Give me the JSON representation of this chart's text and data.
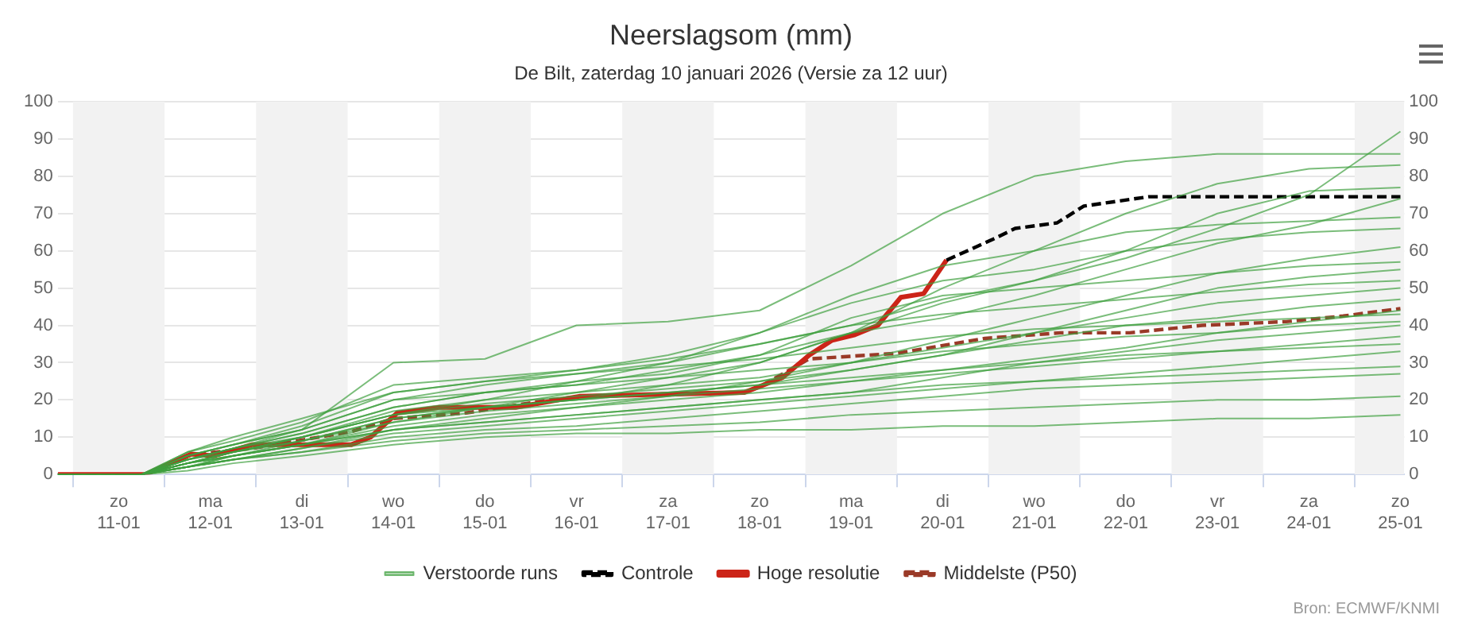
{
  "chart_data": {
    "type": "line",
    "title": "Neerslagsom (mm)",
    "subtitle": "De Bilt, zaterdag 10 januari 2026 (Versie za 12 uur)",
    "annotations": [
      "Bron: ECMWF/KNMI"
    ],
    "x": [
      "2026-01-10T20:00",
      "2026-01-11T18:00",
      "2026-01-12T06:00",
      "2026-01-12T18:00",
      "2026-01-13T12:00",
      "2026-01-14T12:00",
      "2026-01-15T12:00",
      "2026-01-16T12:00",
      "2026-01-17T12:00",
      "2026-01-18T12:00",
      "2026-01-19T12:00",
      "2026-01-20T12:00",
      "2026-01-21T12:00",
      "2026-01-22T12:00",
      "2026-01-23T12:00",
      "2026-01-24T12:00",
      "2026-01-25T12:00"
    ],
    "xlim": [
      "2026-01-10T20:00",
      "2026-01-25T13:00"
    ],
    "xticks": [
      {
        "value": "2026-01-11",
        "label": null
      },
      {
        "value": "2026-01-11T12:00",
        "label": "zo 11-01"
      },
      {
        "value": "2026-01-12",
        "label": null
      },
      {
        "value": "2026-01-12T12:00",
        "label": "ma 12-01"
      },
      {
        "value": "2026-01-13",
        "label": null
      },
      {
        "value": "2026-01-13T12:00",
        "label": "di 13-01"
      },
      {
        "value": "2026-01-14",
        "label": null
      },
      {
        "value": "2026-01-14T12:00",
        "label": "wo 14-01"
      },
      {
        "value": "2026-01-15",
        "label": null
      },
      {
        "value": "2026-01-15T12:00",
        "label": "do 15-01"
      },
      {
        "value": "2026-01-16",
        "label": null
      },
      {
        "value": "2026-01-16T12:00",
        "label": "vr 16-01"
      },
      {
        "value": "2026-01-17",
        "label": null
      },
      {
        "value": "2026-01-17T12:00",
        "label": "za 17-01"
      },
      {
        "value": "2026-01-18",
        "label": null
      },
      {
        "value": "2026-01-18T12:00",
        "label": "zo 18-01"
      },
      {
        "value": "2026-01-19",
        "label": null
      },
      {
        "value": "2026-01-19T12:00",
        "label": "ma 19-01"
      },
      {
        "value": "2026-01-20",
        "label": null
      },
      {
        "value": "2026-01-20T12:00",
        "label": "di 20-01"
      },
      {
        "value": "2026-01-21",
        "label": null
      },
      {
        "value": "2026-01-21T12:00",
        "label": "wo 21-01"
      },
      {
        "value": "2026-01-22",
        "label": null
      },
      {
        "value": "2026-01-22T12:00",
        "label": "do 22-01"
      },
      {
        "value": "2026-01-23",
        "label": null
      },
      {
        "value": "2026-01-23T12:00",
        "label": "vr 23-01"
      },
      {
        "value": "2026-01-24",
        "label": null
      },
      {
        "value": "2026-01-24T12:00",
        "label": "za 24-01"
      },
      {
        "value": "2026-01-25",
        "label": null
      },
      {
        "value": "2026-01-25T12:00",
        "label": "zo 25-01"
      }
    ],
    "ylim": [
      0,
      100
    ],
    "yticks": [
      0,
      10,
      20,
      30,
      40,
      50,
      60,
      70,
      80,
      90,
      100
    ],
    "y2lim": [
      0,
      100
    ],
    "y2ticks": [
      0,
      10,
      20,
      30,
      40,
      50,
      60,
      70,
      80,
      90,
      100
    ],
    "grid": "y",
    "legend": "bottom",
    "bands": [
      {
        "axis": "x",
        "from": "2026-01-11",
        "to": "2026-01-12",
        "color": "#f2f2f2"
      },
      {
        "axis": "x",
        "from": "2026-01-13",
        "to": "2026-01-14",
        "color": "#f2f2f2"
      },
      {
        "axis": "x",
        "from": "2026-01-15",
        "to": "2026-01-16",
        "color": "#f2f2f2"
      },
      {
        "axis": "x",
        "from": "2026-01-17",
        "to": "2026-01-18",
        "color": "#f2f2f2"
      },
      {
        "axis": "x",
        "from": "2026-01-19",
        "to": "2026-01-20",
        "color": "#f2f2f2"
      },
      {
        "axis": "x",
        "from": "2026-01-21",
        "to": "2026-01-22",
        "color": "#f2f2f2"
      },
      {
        "axis": "x",
        "from": "2026-01-23",
        "to": "2026-01-24",
        "color": "#f2f2f2"
      },
      {
        "axis": "x",
        "from": "2026-01-25",
        "to": "2026-01-25T13:00",
        "color": "#f2f2f2"
      }
    ],
    "series": [
      {
        "name": "Verstoorde runs",
        "color": "#3f9f3f",
        "values": [
          0,
          0,
          2,
          5,
          9,
          15,
          18,
          20,
          24,
          30,
          38,
          46,
          52,
          58,
          66,
          75,
          92
        ]
      },
      {
        "color": "#3f9f3f",
        "values": [
          0,
          0,
          4,
          7,
          12,
          30,
          31,
          40,
          41,
          44,
          56,
          70,
          80,
          84,
          86,
          86,
          86
        ]
      },
      {
        "color": "#3f9f3f",
        "values": [
          0,
          0,
          3,
          6,
          10,
          16,
          20,
          25,
          30,
          38,
          48,
          56,
          60,
          70,
          78,
          82,
          83
        ]
      },
      {
        "color": "#3f9f3f",
        "values": [
          0,
          0,
          5,
          8,
          12,
          20,
          24,
          27,
          30,
          35,
          40,
          47,
          52,
          60,
          70,
          76,
          77
        ]
      },
      {
        "color": "#3f9f3f",
        "values": [
          0,
          0,
          4,
          7,
          11,
          18,
          22,
          24,
          28,
          32,
          38,
          42,
          48,
          55,
          62,
          67,
          74
        ]
      },
      {
        "color": "#3f9f3f",
        "values": [
          0,
          0,
          3,
          5,
          8,
          14,
          18,
          22,
          26,
          30,
          38,
          50,
          60,
          65,
          67,
          68,
          69
        ]
      },
      {
        "color": "#3f9f3f",
        "values": [
          0,
          0,
          5,
          8,
          13,
          22,
          25,
          28,
          32,
          38,
          46,
          52,
          55,
          60,
          63,
          65,
          66
        ]
      },
      {
        "color": "#3f9f3f",
        "values": [
          0,
          0,
          2,
          4,
          7,
          12,
          15,
          18,
          21,
          25,
          30,
          36,
          42,
          48,
          54,
          58,
          61
        ]
      },
      {
        "color": "#3f9f3f",
        "values": [
          0,
          0,
          4,
          7,
          11,
          18,
          22,
          25,
          27,
          32,
          42,
          48,
          50,
          52,
          54,
          56,
          57
        ]
      },
      {
        "color": "#3f9f3f",
        "values": [
          0,
          0,
          3,
          6,
          9,
          15,
          18,
          20,
          22,
          24,
          28,
          32,
          38,
          44,
          50,
          53,
          55
        ]
      },
      {
        "color": "#3f9f3f",
        "values": [
          0,
          0,
          6,
          9,
          14,
          24,
          26,
          28,
          31,
          35,
          40,
          43,
          45,
          47,
          49,
          51,
          52
        ]
      },
      {
        "color": "#3f9f3f",
        "values": [
          0,
          0,
          3,
          6,
          10,
          17,
          20,
          22,
          24,
          26,
          30,
          34,
          38,
          42,
          46,
          48,
          50
        ]
      },
      {
        "color": "#3f9f3f",
        "values": [
          0,
          0,
          4,
          7,
          10,
          16,
          19,
          21,
          23,
          25,
          28,
          32,
          36,
          40,
          42,
          45,
          47
        ]
      },
      {
        "color": "#3f9f3f",
        "values": [
          0,
          0,
          2,
          5,
          8,
          13,
          16,
          18,
          20,
          22,
          25,
          28,
          31,
          34,
          38,
          41,
          44
        ]
      },
      {
        "color": "#3f9f3f",
        "values": [
          0,
          0,
          5,
          8,
          12,
          20,
          22,
          24,
          26,
          28,
          30,
          33,
          35,
          37,
          38,
          40,
          41
        ]
      },
      {
        "color": "#3f9f3f",
        "values": [
          0,
          0,
          3,
          5,
          8,
          12,
          14,
          16,
          18,
          20,
          22,
          26,
          30,
          33,
          36,
          38,
          40
        ]
      },
      {
        "color": "#3f9f3f",
        "values": [
          0,
          0,
          4,
          6,
          9,
          14,
          17,
          19,
          21,
          23,
          25,
          27,
          29,
          31,
          33,
          35,
          37
        ]
      },
      {
        "color": "#3f9f3f",
        "values": [
          0,
          0,
          2,
          4,
          7,
          11,
          13,
          15,
          17,
          19,
          21,
          23,
          25,
          27,
          29,
          31,
          33
        ]
      },
      {
        "color": "#3f9f3f",
        "values": [
          0,
          0,
          3,
          5,
          8,
          12,
          14,
          16,
          18,
          20,
          22,
          24,
          25,
          26,
          27,
          28,
          29
        ]
      },
      {
        "color": "#3f9f3f",
        "values": [
          0,
          0,
          2,
          4,
          6,
          10,
          12,
          13,
          15,
          17,
          19,
          21,
          23,
          24,
          25,
          26,
          27
        ]
      },
      {
        "color": "#3f9f3f",
        "values": [
          0,
          0,
          2,
          4,
          6,
          9,
          11,
          12,
          13,
          14,
          16,
          17,
          18,
          19,
          20,
          20,
          21
        ]
      },
      {
        "color": "#3f9f3f",
        "values": [
          0,
          0,
          1,
          3,
          5,
          8,
          10,
          11,
          11,
          12,
          12,
          13,
          13,
          14,
          15,
          15,
          16
        ]
      },
      {
        "color": "#3f9f3f",
        "values": [
          0,
          0,
          6,
          10,
          15,
          22,
          25,
          27,
          29,
          31,
          34,
          37,
          39,
          40,
          41,
          42,
          43
        ]
      },
      {
        "color": "#3f9f3f",
        "values": [
          0,
          0,
          3,
          6,
          10,
          16,
          18,
          20,
          22,
          24,
          26,
          28,
          30,
          32,
          33,
          34,
          35
        ]
      },
      {
        "name": "Controle",
        "color": "#000000",
        "line_style": "dashed",
        "x": [
          "2026-01-20T13:00",
          "2026-01-21T01:00",
          "2026-01-21T07:00",
          "2026-01-21T18:00",
          "2026-01-22T01:00",
          "2026-01-22T18:00",
          "2026-01-25T12:00"
        ],
        "values": [
          57.5,
          63,
          66,
          67.5,
          72,
          74.5,
          74.5
        ]
      },
      {
        "name": "Hoge resolutie",
        "color": "#cc2418",
        "x": [
          "2026-01-10T20:00",
          "2026-01-11T19:00",
          "2026-01-12T07:00",
          "2026-01-12T13:00",
          "2026-01-12T23:00",
          "2026-01-14T01:00",
          "2026-01-14T06:00",
          "2026-01-14T13:00",
          "2026-01-15T00:00",
          "2026-01-15T20:00",
          "2026-01-16T13:00",
          "2026-01-18T08:00",
          "2026-01-18T18:00",
          "2026-01-19T01:00",
          "2026-01-19T07:00",
          "2026-01-19T13:00",
          "2026-01-19T19:00",
          "2026-01-20T01:00",
          "2026-01-20T07:00",
          "2026-01-20T13:00"
        ],
        "values": [
          0,
          0,
          5.5,
          5,
          8,
          8,
          10,
          16.5,
          18,
          18,
          21,
          22,
          26,
          32,
          36,
          37.5,
          40,
          47.5,
          48.5,
          57.5
        ]
      },
      {
        "name": "Middelste (P50)",
        "color": "#9a3a28",
        "line_style": "dashed",
        "x": [
          "2026-01-10T20:00",
          "2026-01-11T19:00",
          "2026-01-12T07:00",
          "2026-01-12T23:00",
          "2026-01-14T01:00",
          "2026-01-14T12:00",
          "2026-01-15T07:00",
          "2026-01-16T05:00",
          "2026-01-16T14:00",
          "2026-01-18T08:00",
          "2026-01-18T12:00",
          "2026-01-19T01:00",
          "2026-01-20T00:00",
          "2026-01-20T23:00",
          "2026-01-21T19:00",
          "2026-01-22T13:00",
          "2026-01-23T08:00",
          "2026-01-24T06:00",
          "2026-01-24T21:00",
          "2026-01-25T12:00"
        ],
        "values": [
          0,
          0,
          5.3,
          7,
          11.5,
          15,
          16.5,
          20,
          21,
          22,
          23.5,
          31,
          32.5,
          36.5,
          38,
          38,
          40,
          41,
          42.5,
          44.5
        ]
      }
    ]
  }
}
